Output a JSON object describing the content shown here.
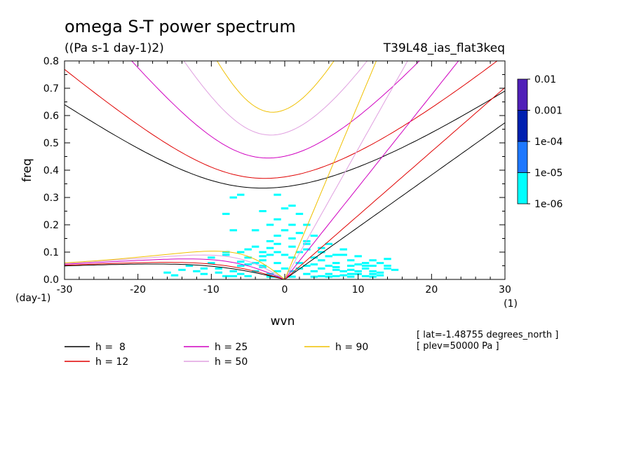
{
  "chart_data": {
    "type": "heatmap",
    "title": "omega S-T power spectrum",
    "subtitle": "((Pa s-1 day-1)2)",
    "run_label": "T39L48_ias_flat3keq",
    "xlabel": "wvn",
    "ylabel": "freq",
    "x_unit": "(1)",
    "y_unit": "(day-1)",
    "xlim": [
      -30,
      30
    ],
    "ylim": [
      0,
      0.8
    ],
    "x_ticks": [
      "-30",
      "-20",
      "-10",
      "0",
      "10",
      "20",
      "30"
    ],
    "y_ticks": [
      "0.0",
      "0.1",
      "0.2",
      "0.3",
      "0.4",
      "0.5",
      "0.6",
      "0.7",
      "0.8"
    ],
    "colorbar": {
      "levels": [
        "0.01",
        "0.001",
        "1e-04",
        "1e-05",
        "1e-06"
      ],
      "colors": [
        "#5020b8",
        "#0020b0",
        "#1e78ff",
        "#00ffff"
      ]
    },
    "dispersion_curves": [
      {
        "label": "h =  8",
        "h": 8,
        "color": "#000000"
      },
      {
        "label": "h = 12",
        "h": 12,
        "color": "#e00000"
      },
      {
        "label": "h = 25",
        "h": 25,
        "color": "#d000c0"
      },
      {
        "label": "h = 50",
        "h": 50,
        "color": "#e0a0e0"
      },
      {
        "label": "h = 90",
        "h": 90,
        "color": "#f0c000"
      }
    ],
    "info_lines": [
      "[ lat=-1.48755 degrees_north ]",
      "[ plev=50000 Pa ]"
    ],
    "power_cells": [
      [
        -8,
        0.012
      ],
      [
        -7,
        0.012
      ],
      [
        -6,
        0.02
      ],
      [
        -5,
        0.012
      ],
      [
        -4,
        0.03
      ],
      [
        -3,
        0.045
      ],
      [
        -2,
        0.02
      ],
      [
        -1,
        0.03
      ],
      [
        1,
        0.03
      ],
      [
        2,
        0.04
      ],
      [
        3,
        0.02
      ],
      [
        4,
        0.03
      ],
      [
        5,
        0.012
      ],
      [
        6,
        0.02
      ],
      [
        7,
        0.012
      ],
      [
        8,
        0.015
      ],
      [
        9,
        0.01
      ],
      [
        10,
        0.02
      ],
      [
        11,
        0.012
      ],
      [
        12,
        0.02
      ],
      [
        13,
        0.015
      ],
      [
        -9,
        0.025
      ],
      [
        -6,
        0.05
      ],
      [
        -5,
        0.055
      ],
      [
        -4,
        0.06
      ],
      [
        -3,
        0.07
      ],
      [
        -2,
        0.09
      ],
      [
        -1,
        0.06
      ],
      [
        1,
        0.08
      ],
      [
        2,
        0.06
      ],
      [
        3,
        0.05
      ],
      [
        4,
        0.055
      ],
      [
        5,
        0.04
      ],
      [
        6,
        0.05
      ],
      [
        7,
        0.045
      ],
      [
        8,
        0.03
      ],
      [
        9,
        0.035
      ],
      [
        10,
        0.03
      ],
      [
        11,
        0.04
      ],
      [
        12,
        0.03
      ],
      [
        13,
        0.025
      ],
      [
        -12,
        0.03
      ],
      [
        -11,
        0.04
      ],
      [
        -10,
        0.06
      ],
      [
        -7,
        0.03
      ],
      [
        -3,
        0.1
      ],
      [
        -2,
        0.115
      ],
      [
        -1,
        0.13
      ],
      [
        0,
        0.09
      ],
      [
        2,
        0.1
      ],
      [
        3,
        0.11
      ],
      [
        4,
        0.08
      ],
      [
        5,
        0.07
      ],
      [
        6,
        0.085
      ],
      [
        7,
        0.06
      ],
      [
        9,
        0.07
      ],
      [
        11,
        0.06
      ],
      [
        12,
        0.05
      ],
      [
        14,
        0.04
      ],
      [
        -16,
        0.025
      ],
      [
        -14,
        0.035
      ],
      [
        -10,
        0.08
      ],
      [
        -8,
        0.09
      ],
      [
        -6,
        0.1
      ],
      [
        -4,
        0.12
      ],
      [
        -1,
        0.16
      ],
      [
        1,
        0.15
      ],
      [
        3,
        0.13
      ],
      [
        5,
        0.115
      ],
      [
        8,
        0.09
      ],
      [
        10,
        0.085
      ],
      [
        13,
        0.06
      ],
      [
        14,
        0.075
      ],
      [
        -15,
        0.015
      ],
      [
        -13,
        0.05
      ],
      [
        -11,
        0.02
      ],
      [
        -9,
        0.04
      ],
      [
        -6,
        0.065
      ],
      [
        -5,
        0.08
      ],
      [
        -3,
        0.05
      ],
      [
        -1,
        0.1
      ],
      [
        1,
        0.12
      ],
      [
        3,
        0.14
      ],
      [
        5,
        0.1
      ],
      [
        7,
        0.09
      ],
      [
        9,
        0.05
      ],
      [
        11,
        0.05
      ],
      [
        12,
        0.07
      ],
      [
        15,
        0.035
      ],
      [
        -8,
        0.1
      ],
      [
        -5,
        0.11
      ],
      [
        -2,
        0.14
      ],
      [
        -1,
        0.22
      ],
      [
        0,
        0.18
      ],
      [
        1,
        0.2
      ],
      [
        2,
        0.17
      ],
      [
        4,
        0.16
      ],
      [
        6,
        0.13
      ],
      [
        8,
        0.11
      ],
      [
        -7,
        0.18
      ],
      [
        -4,
        0.18
      ],
      [
        -8,
        0.24
      ],
      [
        -3,
        0.25
      ],
      [
        -2,
        0.2
      ],
      [
        0,
        0.26
      ],
      [
        1,
        0.27
      ],
      [
        -7,
        0.3
      ],
      [
        -6,
        0.31
      ],
      [
        -1,
        0.31
      ],
      [
        2,
        0.24
      ],
      [
        3,
        0.2
      ],
      [
        -4,
        0.06
      ],
      [
        -3,
        0.085
      ],
      [
        -2,
        0.01
      ],
      [
        -1,
        0.01
      ],
      [
        0,
        0.04
      ],
      [
        1,
        0.01
      ],
      [
        2,
        0.06
      ],
      [
        4,
        0.01
      ],
      [
        6,
        0.01
      ],
      [
        7,
        0.035
      ],
      [
        9,
        0.02
      ],
      [
        10,
        0.055
      ],
      [
        12,
        0.01
      ],
      [
        14,
        0.05
      ]
    ]
  }
}
